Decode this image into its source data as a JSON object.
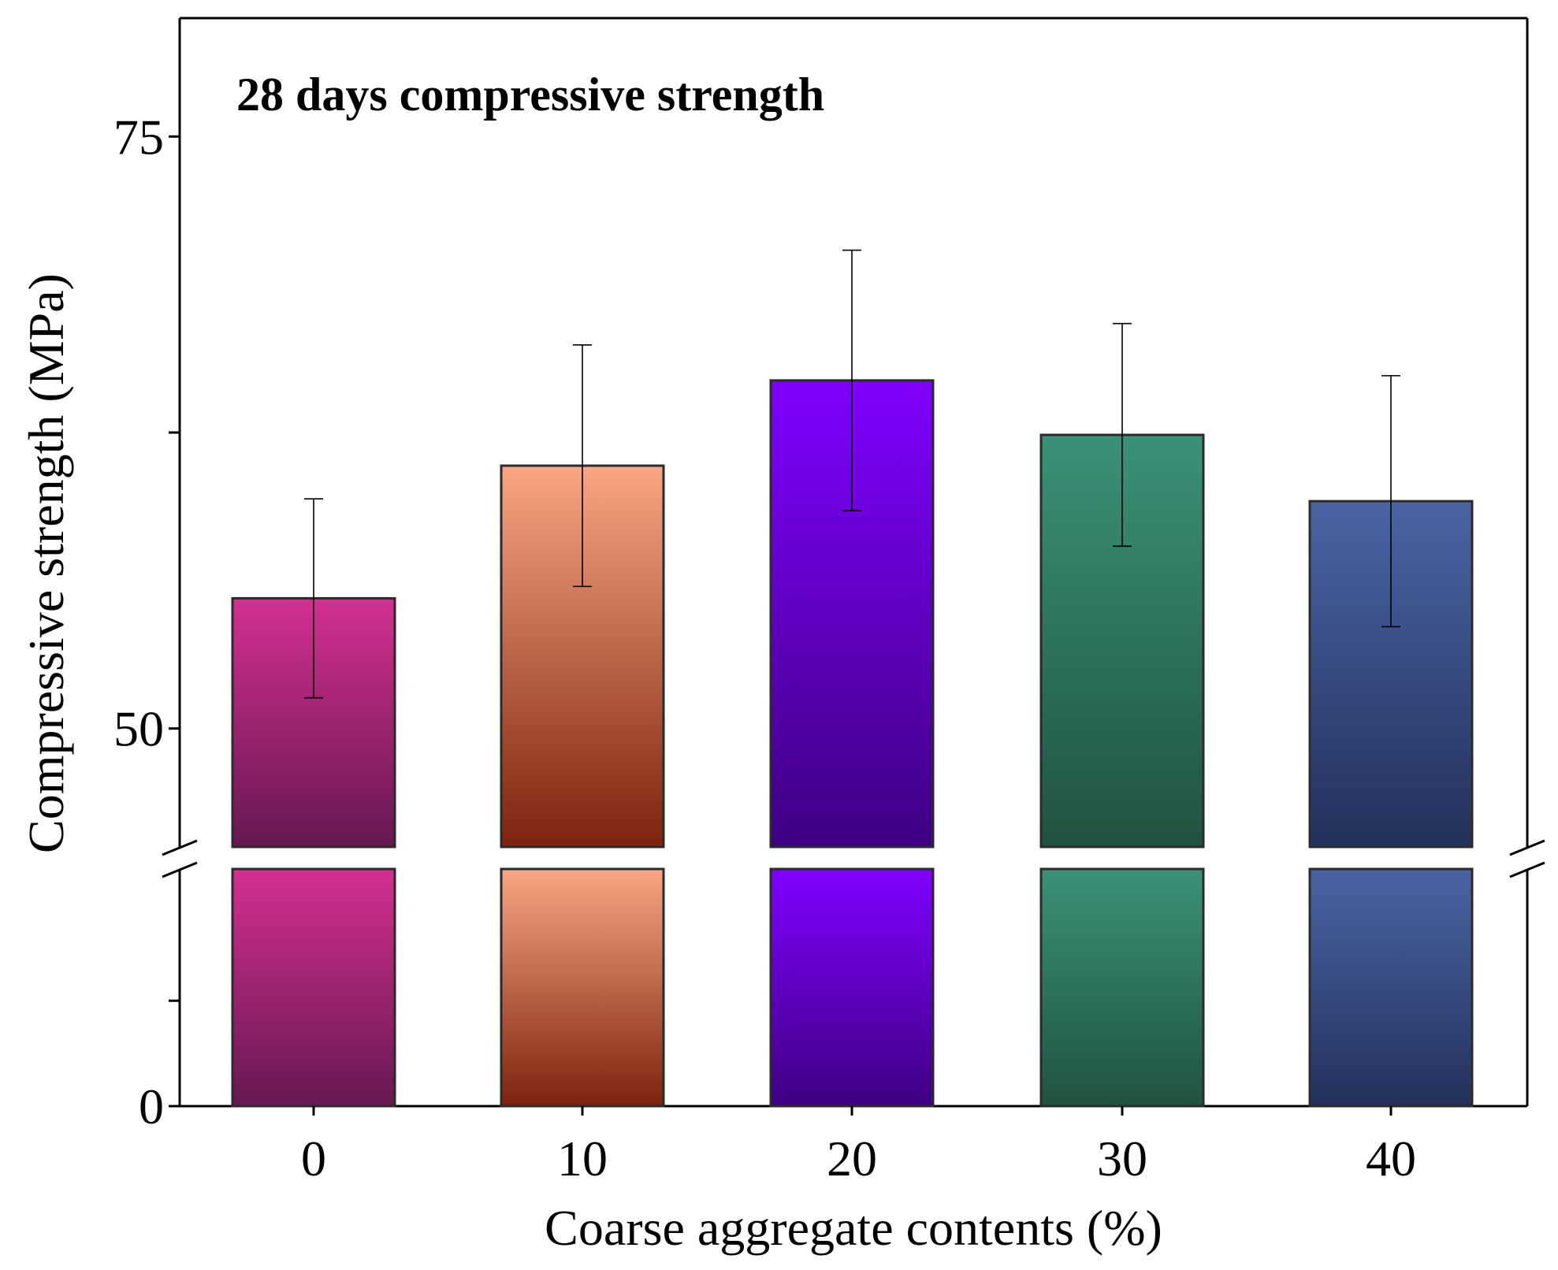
{
  "chart_data": {
    "type": "bar",
    "title": "28 days compressive strength",
    "xlabel": "Coarse aggregate contents (%)",
    "ylabel": "Compressive strength (MPa)",
    "categories": [
      "0",
      "10",
      "20",
      "30",
      "40"
    ],
    "values": [
      55.5,
      61.1,
      64.7,
      62.4,
      59.6
    ],
    "errors": [
      4.2,
      5.1,
      5.5,
      4.7,
      5.3
    ],
    "colors_top": [
      "#d32f92",
      "#f9a684",
      "#8000ff",
      "#3a9278",
      "#4a64a4"
    ],
    "colors_bottom": [
      "#661850",
      "#7b230d",
      "#3e0082",
      "#20533f",
      "#24305a"
    ],
    "y_axis": {
      "break": true,
      "lower_segment": {
        "range": [
          0,
          45
        ],
        "ticks": [
          0,
          20
        ],
        "tick_labels": [
          "0",
          ""
        ]
      },
      "upper_segment": {
        "range": [
          45,
          80
        ],
        "ticks": [
          50,
          62.5,
          75
        ],
        "tick_labels": [
          "50",
          "",
          "75"
        ]
      }
    },
    "grid": false,
    "legend": "none"
  }
}
